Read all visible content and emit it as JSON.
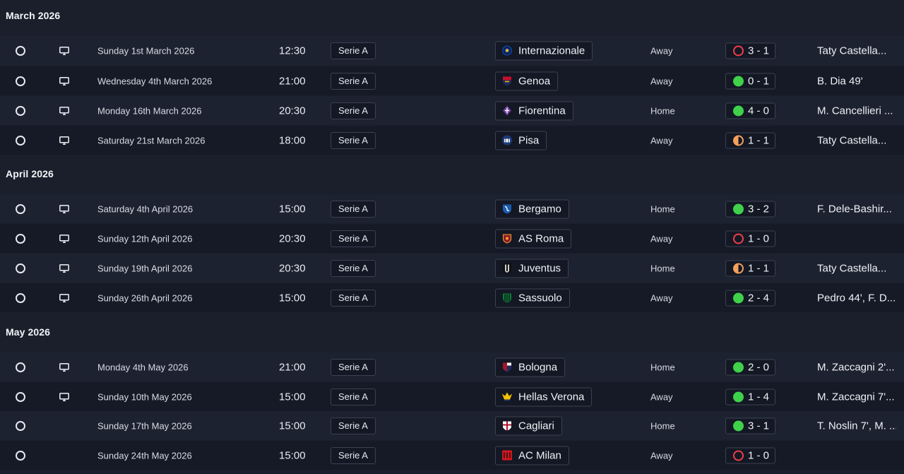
{
  "sections": [
    {
      "title": "March 2026",
      "matches": [
        {
          "date": "Sunday 1st March 2026",
          "time": "12:30",
          "competition": "Serie A",
          "opponent": "Internazionale",
          "crest": "inter-crest",
          "crest_color": "#0d3fa6",
          "venue": "Away",
          "outcome": "loss",
          "score": "3 - 1",
          "scorers": "Taty Castella...",
          "tv": true
        },
        {
          "date": "Wednesday 4th March 2026",
          "time": "21:00",
          "competition": "Serie A",
          "opponent": "Genoa",
          "crest": "genoa-crest",
          "crest_color": "#c8102e",
          "venue": "Away",
          "outcome": "win",
          "score": "0 - 1",
          "scorers": "B. Dia 49'",
          "tv": true
        },
        {
          "date": "Monday 16th March 2026",
          "time": "20:30",
          "competition": "Serie A",
          "opponent": "Fiorentina",
          "crest": "fiorentina-crest",
          "crest_color": "#6a3d9a",
          "venue": "Home",
          "outcome": "win",
          "score": "4 - 0",
          "scorers": "M. Cancellieri ...",
          "tv": true
        },
        {
          "date": "Saturday 21st March 2026",
          "time": "18:00",
          "competition": "Serie A",
          "opponent": "Pisa",
          "crest": "pisa-crest",
          "crest_color": "#1d3b7a",
          "venue": "Away",
          "outcome": "draw",
          "score": "1 - 1",
          "scorers": "Taty Castella...",
          "tv": true
        }
      ]
    },
    {
      "title": "April 2026",
      "matches": [
        {
          "date": "Saturday 4th April 2026",
          "time": "15:00",
          "competition": "Serie A",
          "opponent": "Bergamo",
          "crest": "bergamo-crest",
          "crest_color": "#1a5bb0",
          "venue": "Home",
          "outcome": "win",
          "score": "3 - 2",
          "scorers": "F. Dele-Bashir...",
          "tv": true
        },
        {
          "date": "Sunday 12th April 2026",
          "time": "20:30",
          "competition": "Serie A",
          "opponent": "AS Roma",
          "crest": "roma-crest",
          "crest_color": "#8e1b2e",
          "venue": "Away",
          "outcome": "loss",
          "score": "1 - 0",
          "scorers": "",
          "tv": true
        },
        {
          "date": "Sunday 19th April 2026",
          "time": "20:30",
          "competition": "Serie A",
          "opponent": "Juventus",
          "crest": "juventus-crest",
          "crest_color": "#ffffff",
          "venue": "Home",
          "outcome": "draw",
          "score": "1 - 1",
          "scorers": "Taty Castella...",
          "tv": true
        },
        {
          "date": "Sunday 26th April 2026",
          "time": "15:00",
          "competition": "Serie A",
          "opponent": "Sassuolo",
          "crest": "sassuolo-crest",
          "crest_color": "#0b7a3b",
          "venue": "Away",
          "outcome": "win",
          "score": "2 - 4",
          "scorers": "Pedro 44', F. D...",
          "tv": true
        }
      ]
    },
    {
      "title": "May 2026",
      "matches": [
        {
          "date": "Monday 4th May 2026",
          "time": "21:00",
          "competition": "Serie A",
          "opponent": "Bologna",
          "crest": "bologna-crest",
          "crest_color": "#a3162b",
          "venue": "Home",
          "outcome": "win",
          "score": "2 - 0",
          "scorers": "M. Zaccagni 2'...",
          "tv": true
        },
        {
          "date": "Sunday 10th May 2026",
          "time": "15:00",
          "competition": "Serie A",
          "opponent": "Hellas Verona",
          "crest": "verona-crest",
          "crest_color": "#f2c200",
          "venue": "Away",
          "outcome": "win",
          "score": "1 - 4",
          "scorers": "M. Zaccagni 7'...",
          "tv": true
        },
        {
          "date": "Sunday 17th May 2026",
          "time": "15:00",
          "competition": "Serie A",
          "opponent": "Cagliari",
          "crest": "cagliari-crest",
          "crest_color": "#b3122e",
          "venue": "Home",
          "outcome": "win",
          "score": "3 - 1",
          "scorers": "T. Noslin 7', M. ...",
          "tv": false
        },
        {
          "date": "Sunday 24th May 2026",
          "time": "15:00",
          "competition": "Serie A",
          "opponent": "AC Milan",
          "crest": "milan-crest",
          "crest_color": "#d0161f",
          "venue": "Away",
          "outcome": "loss",
          "score": "1 - 0",
          "scorers": "",
          "tv": false
        }
      ]
    }
  ],
  "colors": {
    "win": "#3fd14a",
    "loss": "#ef3f4b",
    "draw": "#f5a15b",
    "background": "#1a1f2c",
    "row_alt": "#161a26"
  }
}
